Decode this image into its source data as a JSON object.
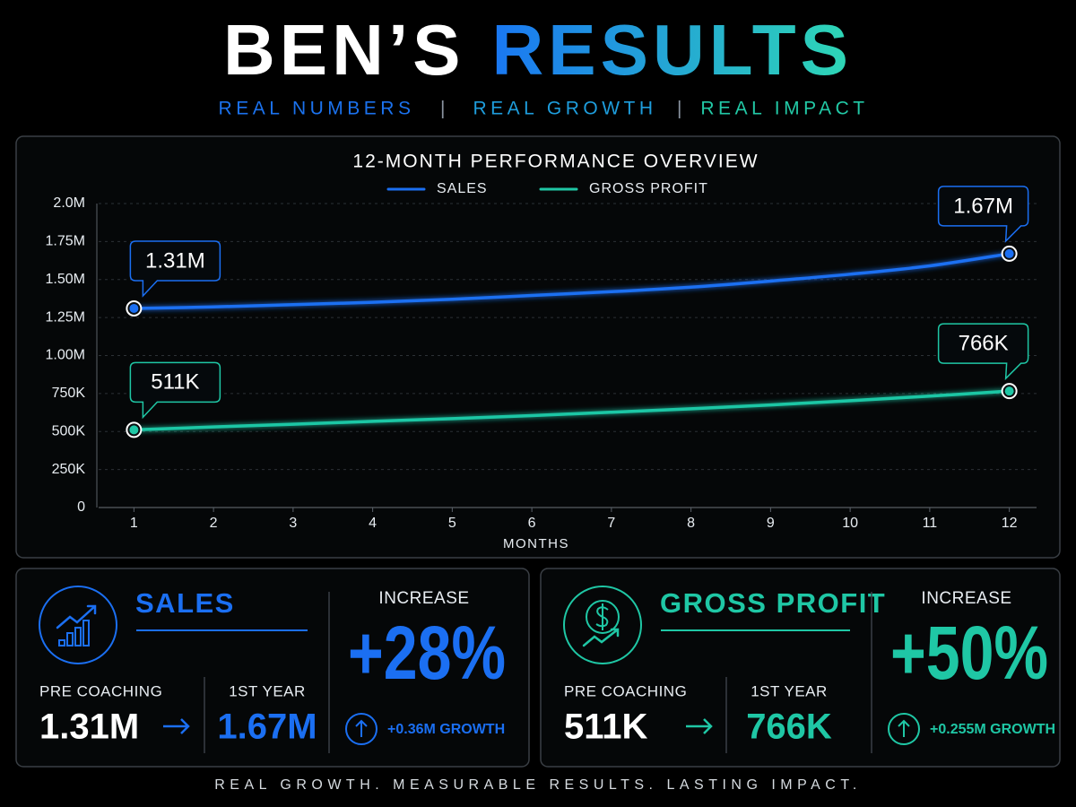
{
  "header": {
    "title_part1": "BEN’S",
    "title_part2": "RESULTS",
    "subtitle": [
      "REAL NUMBERS",
      "REAL GROWTH",
      "REAL IMPACT"
    ],
    "subtitle_separator": "|"
  },
  "chart_data": {
    "type": "line",
    "title": "12-MONTH PERFORMANCE OVERVIEW",
    "x_label": "MONTHS",
    "x": [
      1,
      2,
      3,
      4,
      5,
      6,
      7,
      8,
      9,
      10,
      11,
      12
    ],
    "xlim": [
      0.5,
      12.5
    ],
    "xticks": [
      1,
      2,
      3,
      4,
      5,
      6,
      7,
      8,
      9,
      10,
      11,
      12
    ],
    "ylim": [
      0,
      2000000
    ],
    "yticks": [
      0,
      {
        "value": 250000,
        "label": "250K"
      },
      {
        "value": 500000,
        "label": "500K"
      },
      {
        "value": 750000,
        "label": "750K"
      },
      {
        "value": 1000000,
        "label": "1.00M"
      },
      {
        "value": 1250000,
        "label": "1.25M"
      },
      {
        "value": 1500000,
        "label": "1.50M"
      },
      {
        "value": 1750000,
        "label": "1.75M"
      },
      {
        "value": 2000000,
        "label": "2.0M"
      }
    ],
    "grid": true,
    "series": [
      {
        "name": "SALES",
        "color": "#1b6ff2",
        "values": [
          1310000,
          1320000,
          1335000,
          1350000,
          1370000,
          1395000,
          1420000,
          1450000,
          1490000,
          1535000,
          1590000,
          1670000
        ],
        "value_labels": [
          "1.31M",
          null,
          null,
          null,
          null,
          null,
          null,
          null,
          null,
          null,
          null,
          "1.67M"
        ]
      },
      {
        "name": "GROSS PROFIT",
        "color": "#1fc7a5",
        "values": [
          511000,
          530000,
          548000,
          567000,
          585000,
          605000,
          627000,
          650000,
          675000,
          703000,
          733000,
          766000
        ],
        "value_labels": [
          "511K",
          null,
          null,
          null,
          null,
          null,
          null,
          null,
          null,
          null,
          null,
          "766K"
        ]
      }
    ]
  },
  "cards": [
    {
      "title": "SALES",
      "color": "#1b6ff2",
      "pre_label": "PRE COACHING",
      "pre_value": "1.31M",
      "year_label": "1ST YEAR",
      "year_value": "1.67M",
      "increase_label": "INCREASE",
      "increase": "+28%",
      "growth": "+0.36M GROWTH"
    },
    {
      "title": "GROSS PROFIT",
      "color": "#1fc7a5",
      "pre_label": "PRE COACHING",
      "pre_value": "511K",
      "year_label": "1ST YEAR",
      "year_value": "766K",
      "increase_label": "INCREASE",
      "increase": "+50%",
      "growth": "+0.255M GROWTH"
    }
  ],
  "footer": "REAL GROWTH. MEASURABLE RESULTS. LASTING IMPACT."
}
